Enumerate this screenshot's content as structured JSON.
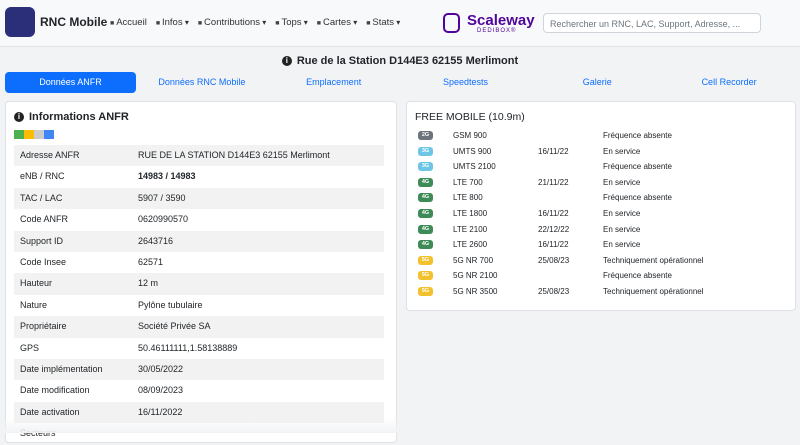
{
  "navbar": {
    "brand": "RNC Mobile",
    "menu": [
      "Accueil",
      "Infos",
      "Contributions",
      "Tops",
      "Cartes",
      "Stats"
    ],
    "sponsor": "Scaleway",
    "sponsor_sub": "DEDIBOX®",
    "search_placeholder": "Rechercher un RNC, LAC, Support, Adresse, ..."
  },
  "page": {
    "title": "Rue de la Station D144E3 62155 Merlimont",
    "tabs": [
      "Données ANFR",
      "Données RNC Mobile",
      "Emplacement",
      "Speedtests",
      "Galerie",
      "Cell Recorder"
    ]
  },
  "anfr": {
    "title": "Informations ANFR",
    "rows": [
      [
        "Adresse ANFR",
        "RUE DE LA STATION D144E3 62155 Merlimont"
      ],
      [
        "eNB / RNC",
        "14983 / 14983"
      ],
      [
        "TAC / LAC",
        "5907 / 3590"
      ],
      [
        "Code ANFR",
        "0620990570"
      ],
      [
        "Support ID",
        "2643716"
      ],
      [
        "Code Insee",
        "62571"
      ],
      [
        "Hauteur",
        "12 m"
      ],
      [
        "Nature",
        "Pylône tubulaire"
      ],
      [
        "Propriétaire",
        "Société Privée SA"
      ],
      [
        "GPS",
        "50.46111111,1.58138889"
      ],
      [
        "Date implémentation",
        "30/05/2022"
      ],
      [
        "Date modification",
        "08/09/2023"
      ],
      [
        "Date activation",
        "16/11/2022"
      ],
      [
        "Secteurs"
      ]
    ]
  },
  "operator": {
    "title": "FREE MOBILE (10.9m)",
    "rows": [
      {
        "badge": "2G",
        "badge_color": "#6c757d",
        "tech": "GSM 900",
        "date": null,
        "status": "Fréquence absente"
      },
      {
        "badge": "3G",
        "badge_color": "#6ec6e6",
        "tech": "UMTS 900",
        "date": "16/11/22",
        "status": "En service"
      },
      {
        "badge": "3G",
        "badge_color": "#6ec6e6",
        "tech": "UMTS 2100",
        "date": null,
        "status": "Fréquence absente"
      },
      {
        "badge": "4G",
        "badge_color": "#3f8b57",
        "tech": "LTE 700",
        "date": "21/11/22",
        "status": "En service"
      },
      {
        "badge": "4G",
        "badge_color": "#3f8b57",
        "tech": "LTE 800",
        "date": null,
        "status": "Fréquence absente"
      },
      {
        "badge": "4G",
        "badge_color": "#3f8b57",
        "tech": "LTE 1800",
        "date": "16/11/22",
        "status": "En service"
      },
      {
        "badge": "4G",
        "badge_color": "#3f8b57",
        "tech": "LTE 2100",
        "date": "22/12/22",
        "status": "En service"
      },
      {
        "badge": "4G",
        "badge_color": "#3f8b57",
        "tech": "LTE 2600",
        "date": "16/11/22",
        "status": "En service"
      },
      {
        "badge": "5G",
        "badge_color": "#f2c12e",
        "tech": "5G NR 700",
        "date": "25/08/23",
        "status": "Techniquement opérationnel"
      },
      {
        "badge": "5G",
        "badge_color": "#f2c12e",
        "tech": "5G NR 2100",
        "date": null,
        "status": "Fréquence absente"
      },
      {
        "badge": "5G",
        "badge_color": "#f2c12e",
        "tech": "5G NR 3500",
        "date": "25/08/23",
        "status": "Techniquement opérationnel"
      }
    ]
  }
}
